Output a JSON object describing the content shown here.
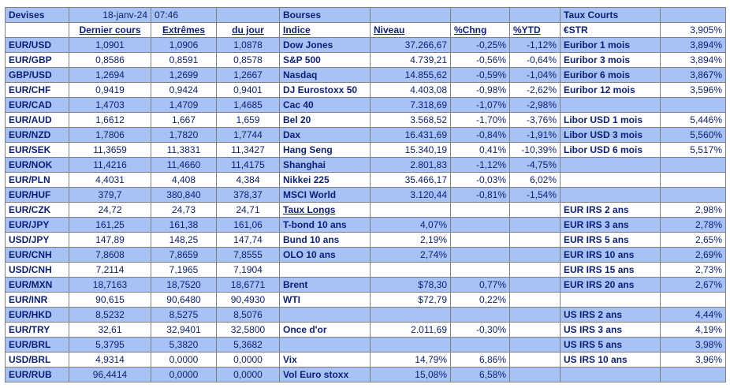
{
  "header": {
    "devises": "Devises",
    "date": "18-janv-24",
    "time": "07:46",
    "bourses": "Bourses",
    "taux_courts": "Taux Courts"
  },
  "columns": {
    "dernier_cours": "Dernier cours",
    "extremes": "Extrêmes",
    "du_jour": "du jour",
    "indice": "Indice",
    "niveau": "Niveau",
    "chng": "%Chng",
    "ytd": "%YTD",
    "estr": "€STR",
    "estr_value": "3,905%"
  },
  "rows": [
    [
      "EUR/USD",
      "1,0901",
      "1,0906",
      "1,0878",
      "Dow Jones",
      "37.266,67",
      "-0,25%",
      "-1,12%",
      "Euribor 1 mois",
      "3,894%"
    ],
    [
      "EUR/GBP",
      "0,8586",
      "0,8591",
      "0,8578",
      "S&P 500",
      "4.739,21",
      "-0,56%",
      "-0,64%",
      "Euribor 3 mois",
      "3,894%"
    ],
    [
      "GBP/USD",
      "1,2694",
      "1,2699",
      "1,2667",
      "Nasdaq",
      "14.855,62",
      "-0,59%",
      "-1,04%",
      "Euribor 6 mois",
      "3,867%"
    ],
    [
      "EUR/CHF",
      "0,9419",
      "0,9424",
      "0,9401",
      "DJ Eurostoxx 50",
      "4.403,08",
      "-0,98%",
      "-2,62%",
      "Euribor 12 mois",
      "3,596%"
    ],
    [
      "EUR/CAD",
      "1,4703",
      "1,4709",
      "1,4685",
      "Cac 40",
      "7.318,69",
      "-1,07%",
      "-2,98%",
      "",
      ""
    ],
    [
      "EUR/AUD",
      "1,6612",
      "1,667",
      "1,659",
      "Bel 20",
      "3.568,52",
      "-1,70%",
      "-3,76%",
      "Libor USD 1 mois",
      "5,446%"
    ],
    [
      "EUR/NZD",
      "1,7806",
      "1,7820",
      "1,7744",
      "Dax",
      "16.431,69",
      "-0,84%",
      "-1,91%",
      "Libor USD 3 mois",
      "5,560%"
    ],
    [
      "EUR/SEK",
      "11,3659",
      "11,3831",
      "11,3427",
      "Hang Seng",
      "15.340,19",
      "0,41%",
      "-10,39%",
      "Libor USD 6 mois",
      "5,517%"
    ],
    [
      "EUR/NOK",
      "11,4216",
      "11,4660",
      "11,4175",
      "Shanghai",
      "2.801,83",
      "-1,12%",
      "-4,75%",
      "",
      ""
    ],
    [
      "EUR/PLN",
      "4,4031",
      "4,408",
      "4,384",
      "Nikkei 225",
      "35.466,17",
      "-0,03%",
      "6,02%",
      "",
      ""
    ],
    [
      "EUR/HUF",
      "379,7",
      "380,840",
      "378,37",
      "MSCI World",
      "3.120,44",
      "-0,81%",
      "-1,54%",
      "",
      ""
    ],
    [
      "EUR/CZK",
      "24,72",
      "24,73",
      "24,71",
      "Taux Longs",
      "",
      "",
      "",
      "EUR IRS 2 ans",
      "2,98%"
    ],
    [
      "EUR/JPY",
      "161,25",
      "161,38",
      "161,06",
      "T-bond 10 ans",
      "4,07%",
      "",
      "",
      "EUR IRS 3 ans",
      "2,78%"
    ],
    [
      "USD/JPY",
      "147,89",
      "148,25",
      "147,74",
      "Bund 10 ans",
      "2,19%",
      "",
      "",
      "EUR IRS 5 ans",
      "2,65%"
    ],
    [
      "EUR/CNH",
      "7,8608",
      "7,8659",
      "7,8555",
      "OLO 10 ans",
      "2,74%",
      "",
      "",
      "EUR IRS 10 ans",
      "2,69%"
    ],
    [
      "USD/CNH",
      "7,2114",
      "7,1965",
      "7,1904",
      "",
      "",
      "",
      "",
      "EUR IRS 15 ans",
      "2,73%"
    ],
    [
      "EUR/MXN",
      "18,7163",
      "18,7520",
      "18,6771",
      "Brent",
      "$78,30",
      "0,77%",
      "",
      "EUR IRS 20 ans",
      "2,67%"
    ],
    [
      "EUR/INR",
      "90,615",
      "90,6480",
      "90,4930",
      "WTI",
      "$72,79",
      "0,22%",
      "",
      "",
      ""
    ],
    [
      "EUR/HKD",
      "8,5232",
      "8,5275",
      "8,5076",
      "",
      "",
      "",
      "",
      "US IRS 2 ans",
      "4,44%"
    ],
    [
      "EUR/TRY",
      "32,61",
      "32,9401",
      "32,5800",
      "Once d'or",
      "2.011,69",
      "-0,30%",
      "",
      "US IRS 3 ans",
      "4,19%"
    ],
    [
      "EUR/BRL",
      "5,3795",
      "5,3820",
      "5,3682",
      "",
      "",
      "",
      "",
      "US IRS 5 ans",
      "3,98%"
    ],
    [
      "USD/BRL",
      "4,9314",
      "0,0000",
      "0,0000",
      "Vix",
      "14,79%",
      "6,86%",
      "",
      "US IRS 10 ans",
      "3,96%"
    ],
    [
      "EUR/RUB",
      "96,4414",
      "0,0000",
      "0,0000",
      "Vol Euro stoxx",
      "15,08%",
      "6,58%",
      "",
      "",
      ""
    ]
  ]
}
